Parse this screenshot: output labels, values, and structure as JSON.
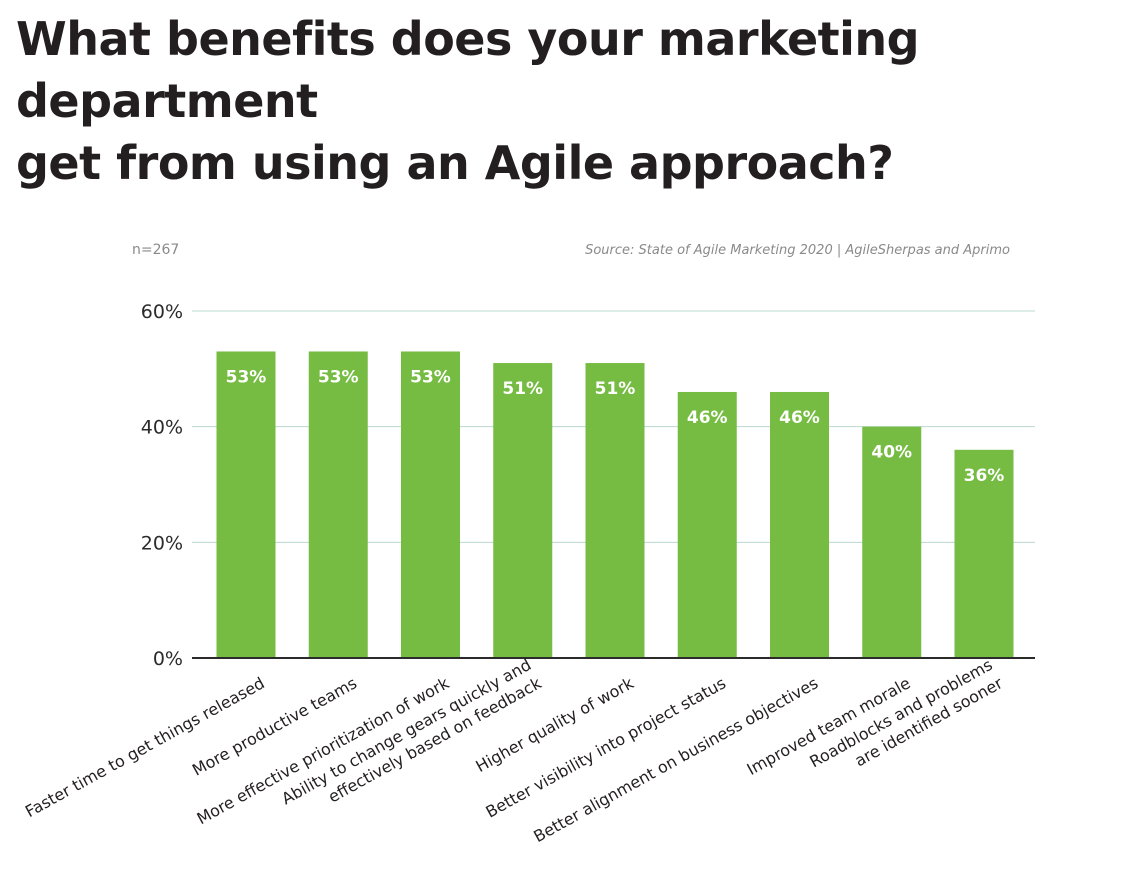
{
  "title_lines": [
    "What benefits does your marketing department",
    "get from using an Agile approach?"
  ],
  "sample_note": "n=267",
  "source": "Source: State of Agile Marketing 2020 | AgileSherpas and Aprimo",
  "colors": {
    "bar": "#76bc43",
    "grid": "#b9d8cf",
    "axis": "#2b2b2b",
    "label_text": "#ffffff"
  },
  "chart_data": {
    "type": "bar",
    "categories": [
      [
        "Faster time to get things released"
      ],
      [
        "More productive teams"
      ],
      [
        "More effective prioritization of work"
      ],
      [
        "Ability to change gears quickly and",
        "effectively based on feedback"
      ],
      [
        "Higher quality of work"
      ],
      [
        "Better visibility into project status"
      ],
      [
        "Better alignment on business objectives"
      ],
      [
        "Improved team morale"
      ],
      [
        "Roadblocks and problems",
        "are identified sooner"
      ]
    ],
    "values": [
      53,
      53,
      53,
      51,
      51,
      46,
      46,
      40,
      36
    ],
    "data_labels": [
      "53%",
      "53%",
      "53%",
      "51%",
      "51%",
      "46%",
      "46%",
      "40%",
      "36%"
    ],
    "yticks": [
      0,
      20,
      40,
      60
    ],
    "ytick_labels": [
      "0%",
      "20%",
      "40%",
      "60%"
    ],
    "ylim": [
      0,
      60
    ],
    "grid": true
  }
}
